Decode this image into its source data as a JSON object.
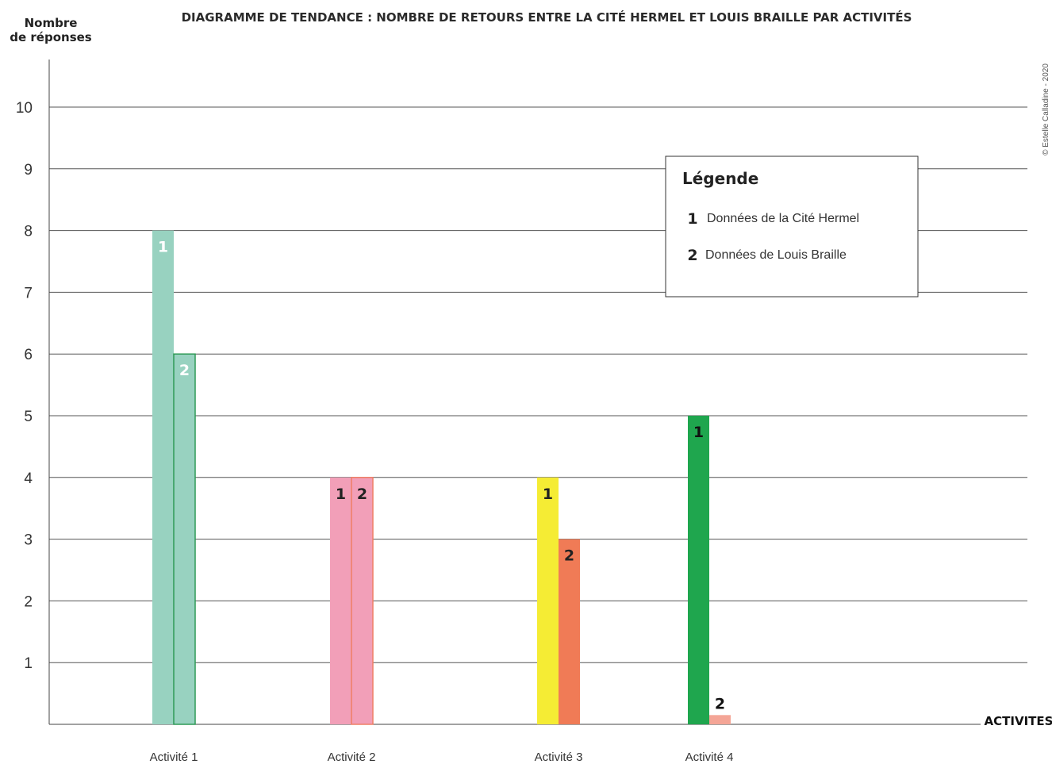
{
  "chart_data": {
    "type": "bar",
    "title": "DIAGRAMME DE TENDANCE : NOMBRE DE RETOURS ENTRE LA CITÉ HERMEL ET LOUIS BRAILLE PAR ACTIVITÉS",
    "ylabel_line1": "Nombre",
    "ylabel_line2": "de réponses",
    "xlabel": "ACTIVITES",
    "ylim": [
      0,
      11
    ],
    "yticks": [
      "1",
      "2",
      "3",
      "4",
      "5",
      "6",
      "7",
      "8",
      "9",
      "10"
    ],
    "grid": true,
    "categories": [
      "Activité 1",
      "Activité 2",
      "Activité 3",
      "Activité 4"
    ],
    "series": [
      {
        "name": "Données de la Cité Hermel",
        "marker": "1",
        "values": [
          8,
          4,
          4,
          5
        ]
      },
      {
        "name": "Données de Louis Braille",
        "marker": "2",
        "values": [
          6,
          4,
          3,
          0.15
        ]
      }
    ],
    "bar_colors": [
      [
        "#98d2c0",
        "#98d2c0"
      ],
      [
        "#f29fb8",
        "#f29fb8"
      ],
      [
        "#f5ec34",
        "#f07b56"
      ],
      [
        "#1fa64e",
        "#f4a596"
      ]
    ],
    "bar_outline_colors": [
      [
        "none",
        "#2f9a57"
      ],
      [
        "none",
        "#ef7f66"
      ],
      [
        "none",
        "none"
      ],
      [
        "none",
        "none"
      ]
    ],
    "label_colors": [
      [
        "#ffffff",
        "#ffffff"
      ],
      [
        "#222222",
        "#222222"
      ],
      [
        "#222222",
        "#222222"
      ],
      [
        "#111111",
        "#111111"
      ]
    ],
    "legend": {
      "title": "Légende",
      "placement": "top-right",
      "items": [
        {
          "marker": "1",
          "label": "Données de la Cité Hermel"
        },
        {
          "marker": "2",
          "label": "Données de Louis Braille"
        }
      ]
    },
    "annotation": "© Estelle Calladine - 2020"
  }
}
